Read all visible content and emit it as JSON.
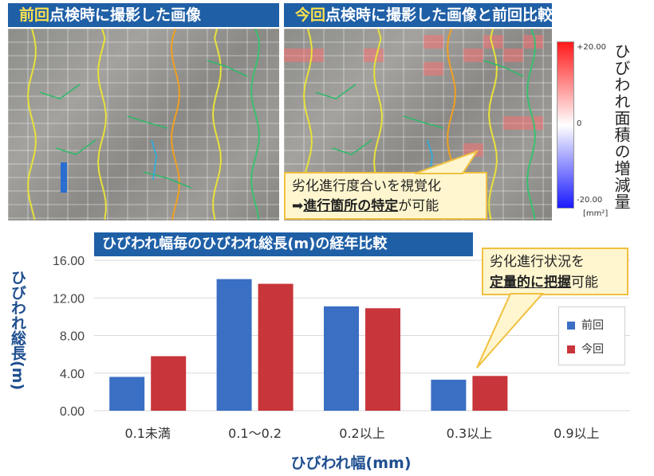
{
  "panels": {
    "left_title_highlight": "前回",
    "left_title_rest": "点検時に撮影した画像",
    "right_title_highlight": "今回",
    "right_title_rest": "点検時に撮影した画像と前回比較結果"
  },
  "colorbar": {
    "max_label": "+20.00",
    "mid_label": "0",
    "min_label": "-20.00",
    "unit": "[mm²]",
    "title": "ひびわれ面積の増減量"
  },
  "callout_top": {
    "line1": "劣化進行度合いを視覚化",
    "arrow": "➡",
    "line2_bold": "進行箇所の特定",
    "line2_rest": "が可能"
  },
  "callout_chart": {
    "line1": "劣化進行状況を",
    "line2_bold": "定量的に把握",
    "line2_rest": "可能"
  },
  "colors": {
    "title_bg": "#1f5fa6",
    "highlight": "#ffe14d",
    "series_prev": "#3a6fc4",
    "series_curr": "#c8353a",
    "axis_text": "#1f4f8f",
    "callout_bg": "#fff6cf",
    "callout_border": "#f0c040"
  },
  "chart_data": {
    "type": "bar",
    "title": "ひびわれ幅毎のひびわれ総長(m)の経年比較",
    "xlabel": "ひびわれ幅(mm)",
    "ylabel": "ひびわれ総長(m)",
    "categories": [
      "0.1未満",
      "0.1〜0.2",
      "0.2以上",
      "0.3以上",
      "0.9以上"
    ],
    "series": [
      {
        "name": "前回",
        "values": [
          3.6,
          14.0,
          11.1,
          3.3,
          0
        ]
      },
      {
        "name": "今回",
        "values": [
          5.8,
          13.5,
          10.9,
          3.7,
          0
        ]
      }
    ],
    "ylim": [
      0,
      16
    ],
    "yticks": [
      "0.00",
      "4.00",
      "8.00",
      "12.00",
      "16.00"
    ],
    "grid": true,
    "legend": "right"
  }
}
